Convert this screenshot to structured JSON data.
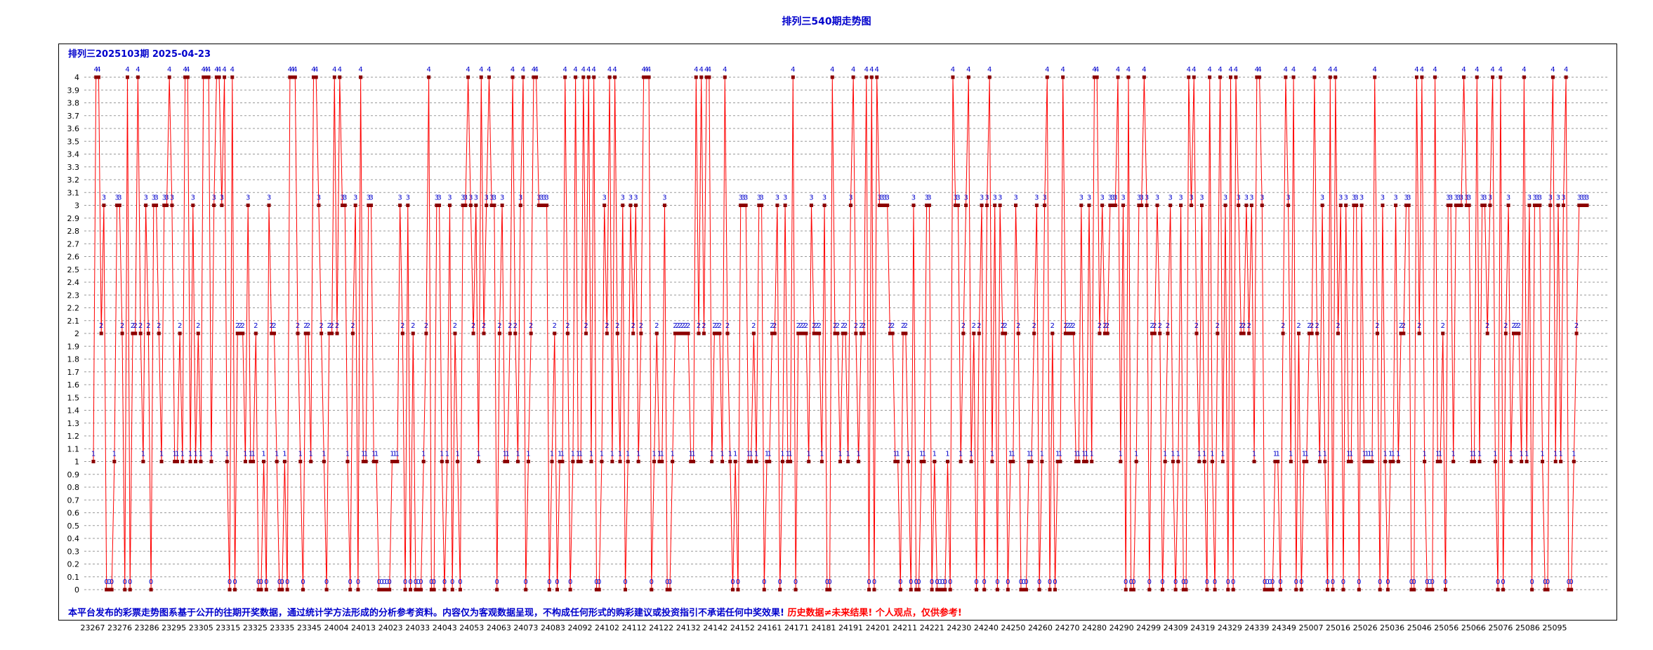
{
  "title": "排列三540期走势图",
  "subtitle": "排列三2025103期  2025-04-23",
  "footer": {
    "disclaimer": "本平台发布的彩票走势图系基于公开的往期开奖数据，通过统计学方法形成的分析参考资料。内容仅为客观数据呈现，不构成任何形式的购彩建议或投资指引不承诺任何中奖效果!",
    "warning": "历史数据≠未来结果! 个人观点，仅供参考!"
  },
  "colors": {
    "line": "#ff0000",
    "point": "#8b0000",
    "label": "#0000cc",
    "grid": "#999999",
    "text": "#000000"
  },
  "chart_data": {
    "type": "line",
    "title": "排列三540期走势图",
    "ylim": [
      0,
      4
    ],
    "y_ticks": [
      "0",
      "0.1",
      "0.2",
      "0.3",
      "0.4",
      "0.5",
      "0.6",
      "0.7",
      "0.8",
      "0.9",
      "1",
      "1.1",
      "1.2",
      "1.3",
      "1.4",
      "1.5",
      "1.6",
      "1.7",
      "1.8",
      "1.9",
      "2",
      "2.1",
      "2.2",
      "2.3",
      "2.4",
      "2.5",
      "2.6",
      "2.7",
      "2.8",
      "2.9",
      "3",
      "3.1",
      "3.2",
      "3.3",
      "3.4",
      "3.5",
      "3.6",
      "3.7",
      "3.8",
      "3.9",
      "4"
    ],
    "x_tick_labels": [
      "23267",
      "23276",
      "23286",
      "23295",
      "23305",
      "23315",
      "23325",
      "23335",
      "23345",
      "24004",
      "24013",
      "24023",
      "24033",
      "24043",
      "24053",
      "24063",
      "24073",
      "24083",
      "24092",
      "24102",
      "24112",
      "24122",
      "24132",
      "24142",
      "24152",
      "24161",
      "24171",
      "24181",
      "24191",
      "24201",
      "24211",
      "24221",
      "24230",
      "24240",
      "24250",
      "24260",
      "24270",
      "24280",
      "24290",
      "24299",
      "24309",
      "24319",
      "24329",
      "24339",
      "24349",
      "25007",
      "25016",
      "25026",
      "25036",
      "25046",
      "25056",
      "25066",
      "25076",
      "25086",
      "25095"
    ],
    "grid": "dashed horizontal",
    "values": [
      1,
      4,
      4,
      2,
      3,
      0,
      0,
      0,
      1,
      3,
      3,
      2,
      0,
      4,
      0,
      2,
      2,
      4,
      2,
      1,
      3,
      2,
      0,
      3,
      3,
      2,
      1,
      3,
      3,
      4,
      3,
      1,
      1,
      2,
      1,
      4,
      4,
      1,
      3,
      1,
      2,
      1,
      4,
      4,
      4,
      1,
      3,
      4,
      4,
      3,
      4,
      1,
      0,
      4,
      0,
      2,
      2,
      2,
      1,
      3,
      1,
      1,
      2,
      0,
      0,
      1,
      0,
      3,
      2,
      2,
      1,
      0,
      0,
      1,
      0,
      4,
      4,
      4,
      2,
      1,
      0,
      2,
      2,
      1,
      4,
      4,
      3,
      2,
      1,
      0,
      2,
      2,
      4,
      2,
      4,
      3,
      3,
      1,
      0,
      2,
      3,
      0,
      4,
      1,
      1,
      3,
      3,
      1,
      1,
      0,
      0,
      0,
      0,
      0,
      1,
      1,
      1,
      3,
      2,
      0,
      3,
      0,
      2,
      0,
      0,
      0,
      1,
      2,
      4,
      0,
      0,
      3,
      3,
      1,
      0,
      1,
      3,
      0,
      2,
      1,
      0,
      3,
      3,
      4,
      3,
      2,
      3,
      1,
      4,
      2,
      3,
      4,
      3,
      3,
      0,
      2,
      3,
      1,
      1,
      2,
      4,
      2,
      1,
      3,
      4,
      0,
      1,
      2,
      4,
      4,
      3,
      3,
      3,
      3,
      0,
      1,
      2,
      0,
      1,
      1,
      4,
      2,
      0,
      1,
      4,
      1,
      1,
      4,
      2,
      4,
      1,
      4,
      0,
      0,
      1,
      3,
      2,
      4,
      1,
      4,
      2,
      1,
      3,
      0,
      1,
      3,
      2,
      3,
      1,
      2,
      4,
      4,
      4,
      0,
      1,
      2,
      1,
      1,
      3,
      0,
      0,
      1,
      2,
      2,
      2,
      2,
      2,
      2,
      1,
      1,
      4,
      2,
      4,
      2,
      4,
      4,
      1,
      2,
      2,
      2,
      1,
      4,
      2,
      1,
      0,
      1,
      0,
      3,
      3,
      3,
      1,
      1,
      2,
      1,
      3,
      3,
      0,
      1,
      1,
      2,
      2,
      3,
      0,
      1,
      3,
      1,
      1,
      4,
      0,
      2,
      2,
      2,
      2,
      1,
      3,
      2,
      2,
      2,
      1,
      3,
      0,
      0,
      4,
      2,
      2,
      1,
      2,
      2,
      1,
      3,
      4,
      2,
      1,
      2,
      2,
      4,
      0,
      4,
      0,
      4,
      3,
      3,
      3,
      3,
      2,
      2,
      1,
      1,
      0,
      2,
      2,
      1,
      0,
      3,
      0,
      0,
      1,
      1,
      3,
      3,
      0,
      1,
      0,
      0,
      0,
      0,
      1,
      0,
      4,
      3,
      3,
      1,
      2,
      3,
      4,
      1,
      2,
      0,
      2,
      3,
      0,
      3,
      4,
      1,
      3,
      0,
      3,
      2,
      2,
      0,
      1,
      1,
      3,
      2,
      0,
      0,
      0,
      1,
      1,
      2,
      3,
      0,
      1,
      3,
      4,
      0,
      2,
      0,
      1,
      1,
      4,
      2,
      2,
      2,
      2,
      1,
      1,
      3,
      1,
      1,
      3,
      1,
      4,
      4,
      2,
      3,
      2,
      2,
      3,
      3,
      3,
      4,
      1,
      3,
      0,
      4,
      0,
      0,
      1,
      3,
      3,
      4,
      3,
      0,
      2,
      2,
      3,
      2,
      0,
      1,
      2,
      3,
      1,
      0,
      1,
      3,
      0,
      0,
      4,
      3,
      4,
      2,
      1,
      3,
      1,
      0,
      4,
      1,
      0,
      2,
      4,
      1,
      3,
      0,
      4,
      0,
      4,
      3,
      2,
      2,
      3,
      2,
      3,
      1,
      4,
      4,
      3,
      0,
      0,
      0,
      0,
      1,
      1,
      0,
      2,
      4,
      3,
      1,
      4,
      0,
      2,
      0,
      1,
      1,
      2,
      2,
      4,
      2,
      1,
      3,
      1,
      0,
      4,
      0,
      4,
      2,
      3,
      0,
      3,
      1,
      1,
      3,
      3,
      0,
      3,
      1,
      1,
      1,
      1,
      4,
      2,
      0,
      3,
      1,
      0,
      1,
      1,
      3,
      1,
      2,
      2,
      3,
      3,
      0,
      0,
      4,
      2,
      4,
      1,
      0,
      0,
      0,
      4,
      1,
      1,
      2,
      0,
      3,
      3,
      1,
      3,
      3,
      3,
      4,
      3,
      3,
      1,
      1,
      4,
      1,
      3,
      3,
      2,
      3,
      4,
      1,
      0,
      4,
      0,
      2,
      3,
      1,
      2,
      2,
      2,
      1,
      4,
      1,
      3,
      0,
      3,
      3,
      3,
      1,
      0,
      0,
      3,
      4,
      1,
      3,
      1,
      3,
      4,
      0,
      0,
      1,
      2,
      3,
      3,
      3,
      3
    ]
  }
}
